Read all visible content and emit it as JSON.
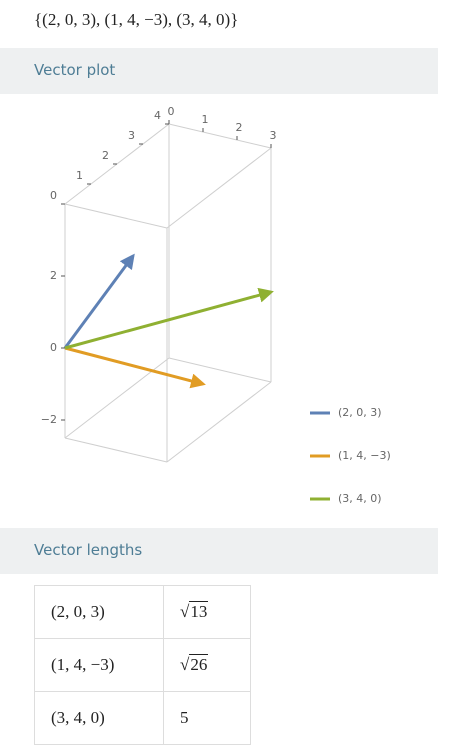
{
  "input": "{(2, 0, 3), (1, 4, −3), (3, 4, 0)}",
  "vector_plot": {
    "heading": "Vector plot",
    "type": "vector3d",
    "xlim": [
      0,
      3
    ],
    "ylim": [
      0,
      4
    ],
    "zlim": [
      -2.5,
      4
    ],
    "xticks": [
      0,
      1,
      2,
      3
    ],
    "yticks": [
      0,
      1,
      2,
      3,
      4
    ],
    "zticks": [
      {
        "value": -2,
        "label": "−2"
      },
      0,
      2
    ],
    "series": [
      {
        "name": "(2, 0, 3)",
        "color": "#5e81b5",
        "values": [
          2,
          0,
          3
        ]
      },
      {
        "name": "(1, 4, −3)",
        "color": "#e19c24",
        "values": [
          1,
          4,
          -3
        ]
      },
      {
        "name": "(3, 4, 0)",
        "color": "#8fb032",
        "values": [
          3,
          4,
          0
        ]
      }
    ]
  },
  "vector_lengths": {
    "heading": "Vector lengths",
    "rows": [
      {
        "vector": "(2, 0, 3)",
        "length": "13",
        "sqrt": true
      },
      {
        "vector": "(1, 4, −3)",
        "length": "26",
        "sqrt": true
      },
      {
        "vector": "(3, 4, 0)",
        "length": "5",
        "sqrt": false
      }
    ]
  }
}
